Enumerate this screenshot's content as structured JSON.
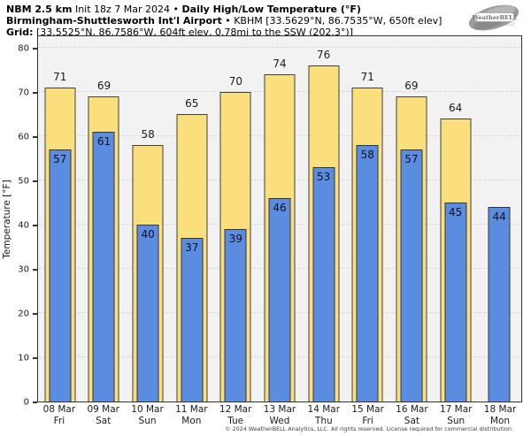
{
  "header": {
    "line1_bold1": "NBM 2.5 km",
    "line1_reg1": " Init 18z 7 Mar 2024 • ",
    "line1_bold2": "Daily High/Low Temperature (°F)",
    "line2_bold": "Birmingham-Shuttlesworth Int'l Airport",
    "line2_reg": " • KBHM [33.5629°N, 86.7535°W, 650ft elev]",
    "line3_bold": "Grid:",
    "line3_reg": " [33.5525°N, 86.7586°W, 604ft elev, 0.78mi to the SSW (202.3°)]"
  },
  "logo": {
    "name": "WeatherBELL",
    "sub": "Analytics LLC"
  },
  "footer": {
    "copyright": "© 2024 WeatherBELL Analytics, LLC. All rights reserved. License required for commercial distribution."
  },
  "chart_data": {
    "type": "bar",
    "title": "NBM 2.5 km Init 18z 7 Mar 2024 • Daily High/Low Temperature (°F)",
    "subtitle": "Birmingham-Shuttlesworth Int'l Airport • KBHM [33.5629°N, 86.7535°W, 650ft elev]",
    "grid_info": "Grid: [33.5525°N, 86.7586°W, 604ft elev, 0.78mi to the SSW (202.3°)]",
    "ylabel": "Temperature [°F]",
    "ylim": [
      0,
      80
    ],
    "yticks": [
      0,
      10,
      20,
      30,
      40,
      50,
      60,
      70,
      80
    ],
    "grid": "dashed horizontal",
    "legend_position": "none",
    "categories": [
      {
        "date": "08 Mar",
        "day": "Fri"
      },
      {
        "date": "09 Mar",
        "day": "Sat"
      },
      {
        "date": "10 Mar",
        "day": "Sun"
      },
      {
        "date": "11 Mar",
        "day": "Mon"
      },
      {
        "date": "12 Mar",
        "day": "Tue"
      },
      {
        "date": "13 Mar",
        "day": "Wed"
      },
      {
        "date": "14 Mar",
        "day": "Thu"
      },
      {
        "date": "15 Mar",
        "day": "Fri"
      },
      {
        "date": "16 Mar",
        "day": "Sat"
      },
      {
        "date": "17 Mar",
        "day": "Sun"
      },
      {
        "date": "18 Mar",
        "day": "Mon"
      }
    ],
    "series": [
      {
        "name": "Daily High",
        "color": "#fbdf7c",
        "values": [
          71,
          69,
          58,
          65,
          70,
          74,
          76,
          71,
          69,
          64,
          null
        ]
      },
      {
        "name": "Daily Low",
        "color": "#5a8ce0",
        "values": [
          57,
          61,
          40,
          37,
          39,
          46,
          53,
          58,
          57,
          45,
          44
        ]
      }
    ]
  }
}
